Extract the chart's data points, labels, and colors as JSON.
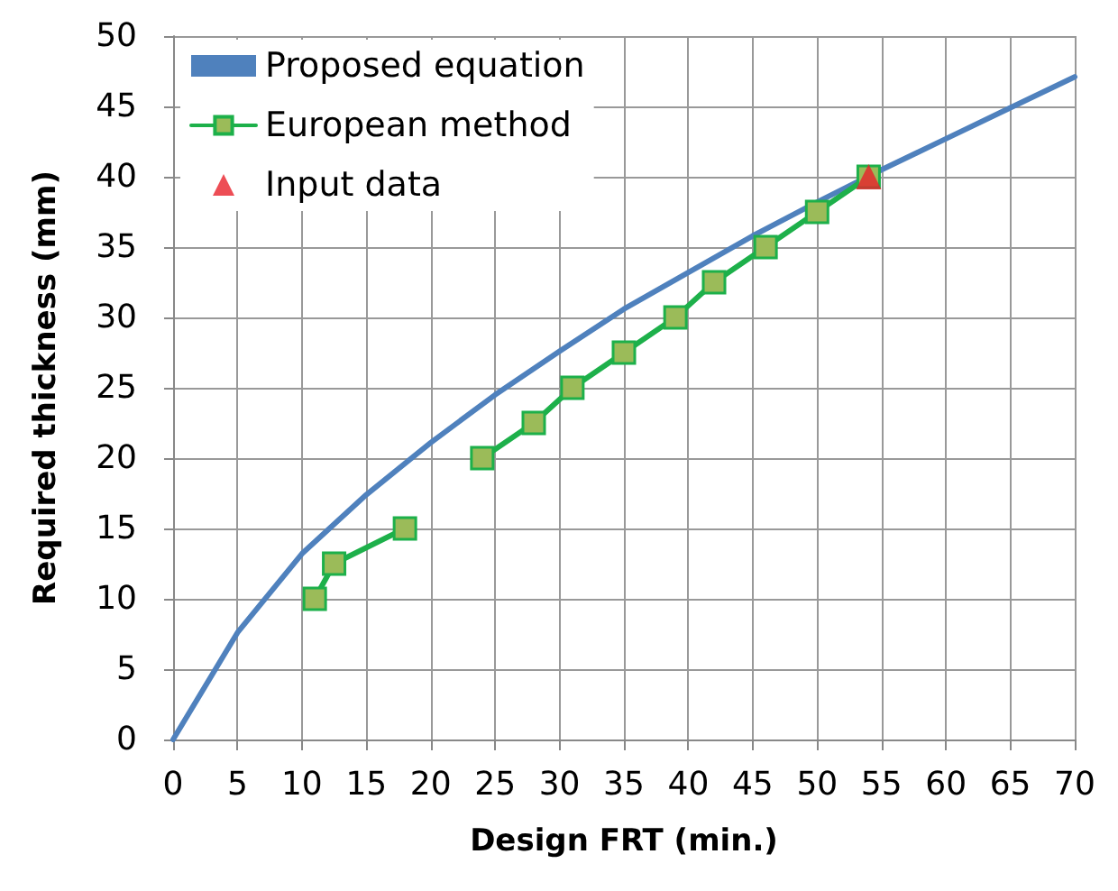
{
  "chart_data": {
    "type": "line",
    "xlabel": "Design FRT (min.)",
    "ylabel": "Required thickness (mm)",
    "xlim": [
      0,
      70
    ],
    "xticks": [
      0,
      5,
      10,
      15,
      20,
      25,
      30,
      35,
      40,
      45,
      50,
      55,
      60,
      65,
      70
    ],
    "ylim": [
      0,
      50
    ],
    "yticks": [
      0,
      5,
      10,
      15,
      20,
      25,
      30,
      35,
      40,
      45,
      50
    ],
    "grid": true,
    "legend": "top left",
    "series": [
      {
        "name": "Proposed equation",
        "color": "#4f81bd",
        "marker": "none",
        "x": [
          0,
          5,
          10,
          15,
          20,
          25,
          30,
          35,
          40,
          45,
          50,
          55,
          60,
          65,
          70
        ],
        "values": [
          0,
          7.6,
          13.2,
          17.4,
          21.1,
          24.5,
          27.6,
          30.6,
          33.2,
          35.8,
          38.2,
          40.5,
          42.7,
          44.9,
          47.1
        ]
      },
      {
        "name": "European method",
        "color": "#1db04a",
        "marker": "square",
        "x": [
          11,
          12.5,
          18,
          21,
          24,
          28,
          31,
          35,
          39,
          42,
          46,
          50,
          54
        ],
        "values": [
          10,
          12.5,
          15,
          null,
          20,
          22.5,
          25,
          27.5,
          30,
          32.5,
          35,
          37.5,
          40
        ]
      },
      {
        "name": "Input data",
        "type": "scatter",
        "color": "#e8202a",
        "marker": "triangle",
        "x": [
          54
        ],
        "values": [
          40
        ]
      }
    ]
  }
}
